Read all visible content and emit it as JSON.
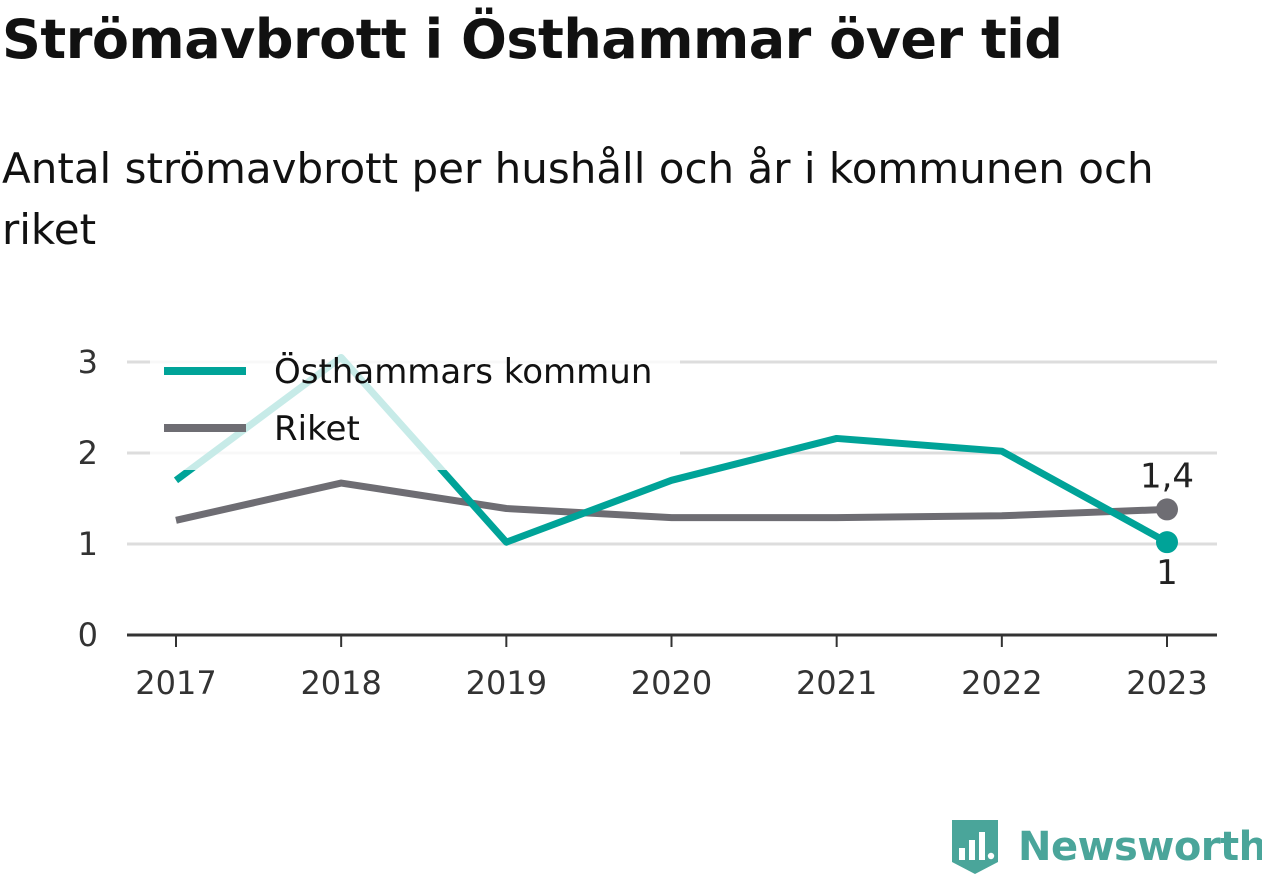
{
  "title": "Strömavbrott i Östhammar över tid",
  "subtitle": "Antal strömavbrott per hushåll och år i kommunen och riket",
  "chart_data": {
    "type": "line",
    "title": "Strömavbrott i Östhammar över tid",
    "subtitle": "Antal strömavbrott per hushåll och år i kommunen och riket",
    "xlabel": "",
    "ylabel": "",
    "x": [
      "2017",
      "2018",
      "2019",
      "2020",
      "2021",
      "2022",
      "2023"
    ],
    "ylim": [
      0,
      3
    ],
    "yticks": [
      "0",
      "1",
      "2",
      "3"
    ],
    "grid": true,
    "legend_position": "top-left",
    "series": [
      {
        "name": "Östhammars kommun",
        "color": "#00a398",
        "values": [
          1.7,
          3.05,
          1.02,
          1.7,
          2.16,
          2.02,
          1.02
        ],
        "end_label": "1"
      },
      {
        "name": "Riket",
        "color": "#6e6d73",
        "values": [
          1.26,
          1.67,
          1.39,
          1.29,
          1.29,
          1.31,
          1.38
        ],
        "end_label": "1,4"
      }
    ]
  },
  "logo": {
    "text": "Newsworthy",
    "color": "#4aa59a",
    "icon": "bar-chart-shield-icon"
  }
}
